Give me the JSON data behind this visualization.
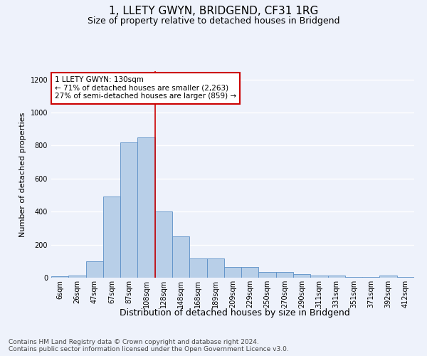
{
  "title": "1, LLETY GWYN, BRIDGEND, CF31 1RG",
  "subtitle": "Size of property relative to detached houses in Bridgend",
  "xlabel": "Distribution of detached houses by size in Bridgend",
  "ylabel": "Number of detached properties",
  "footer_line1": "Contains HM Land Registry data © Crown copyright and database right 2024.",
  "footer_line2": "Contains public sector information licensed under the Open Government Licence v3.0.",
  "categories": [
    "6sqm",
    "26sqm",
    "47sqm",
    "67sqm",
    "87sqm",
    "108sqm",
    "128sqm",
    "148sqm",
    "168sqm",
    "189sqm",
    "209sqm",
    "229sqm",
    "250sqm",
    "270sqm",
    "290sqm",
    "311sqm",
    "331sqm",
    "351sqm",
    "371sqm",
    "392sqm",
    "412sqm"
  ],
  "values": [
    10,
    15,
    97,
    493,
    820,
    848,
    403,
    252,
    117,
    117,
    65,
    65,
    33,
    33,
    22,
    15,
    15,
    5,
    5,
    13,
    5
  ],
  "bar_color": "#b8cfe8",
  "bar_edge_color": "#5b8fc7",
  "annotation_line_color": "#cc0000",
  "annotation_vline_x": 5.5,
  "annotation_text_line1": "1 LLETY GWYN: 130sqm",
  "annotation_text_line2": "← 71% of detached houses are smaller (2,263)",
  "annotation_text_line3": "27% of semi-detached houses are larger (859) →",
  "annotation_box_facecolor": "#ffffff",
  "annotation_box_edgecolor": "#cc0000",
  "ylim": [
    0,
    1250
  ],
  "yticks": [
    0,
    200,
    400,
    600,
    800,
    1000,
    1200
  ],
  "background_color": "#eef2fb",
  "grid_color": "#ffffff",
  "title_fontsize": 11,
  "subtitle_fontsize": 9,
  "ylabel_fontsize": 8,
  "xlabel_fontsize": 9,
  "tick_fontsize": 7,
  "annotation_fontsize": 7.5,
  "footer_fontsize": 6.5
}
